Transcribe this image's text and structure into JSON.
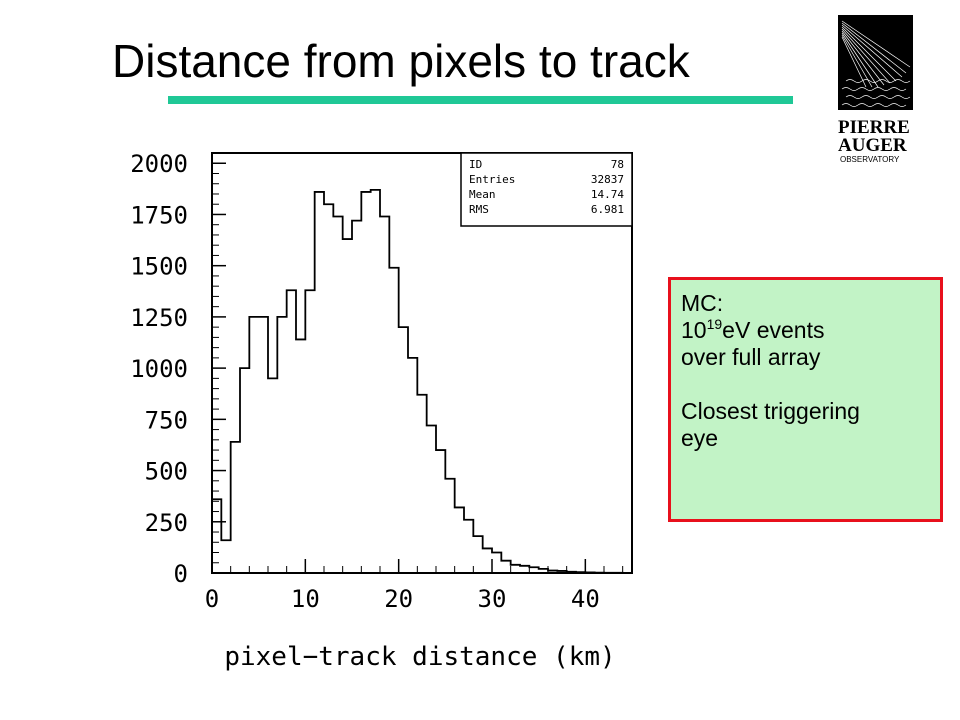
{
  "slide": {
    "title": "Distance from pixels to track",
    "underline_color": "#1fc896"
  },
  "logo": {
    "line1": "PIERRE",
    "line2": "AUGER",
    "line3": "OBSERVATORY",
    "icon": "pierre-auger-logo"
  },
  "note_box": {
    "line1": "MC:",
    "line2_base": "10",
    "line2_exp": "19",
    "line2_rest": "eV events",
    "line3": "over full array",
    "line4": "Closest triggering",
    "line5": "eye",
    "border_color": "#e8101c",
    "fill_color": "#c2f3c6"
  },
  "chart_data": {
    "type": "bar",
    "style": "histogram-step",
    "xlabel": "pixel−track distance (km)",
    "ylabel": "",
    "xlim": [
      0,
      45
    ],
    "ylim": [
      0,
      2050
    ],
    "x_ticks": [
      0,
      10,
      20,
      30,
      40
    ],
    "y_ticks": [
      0,
      250,
      500,
      750,
      1000,
      1250,
      1500,
      1750,
      2000
    ],
    "bin_width": 1,
    "bin_start": 0,
    "values": [
      360,
      160,
      640,
      1000,
      1250,
      1250,
      950,
      1250,
      1380,
      1140,
      1380,
      1860,
      1800,
      1740,
      1630,
      1720,
      1860,
      1870,
      1740,
      1490,
      1200,
      1050,
      870,
      720,
      600,
      460,
      320,
      260,
      180,
      120,
      100,
      60,
      40,
      35,
      28,
      20,
      12,
      10,
      6,
      4,
      3,
      2,
      1,
      1,
      0
    ],
    "stats_box": {
      "position": "top-right",
      "rows": [
        {
          "label": "ID",
          "value": "78"
        },
        {
          "label": "Entries",
          "value": "32837"
        },
        {
          "label": "Mean",
          "value": "14.74"
        },
        {
          "label": "RMS",
          "value": "6.981"
        }
      ]
    }
  }
}
